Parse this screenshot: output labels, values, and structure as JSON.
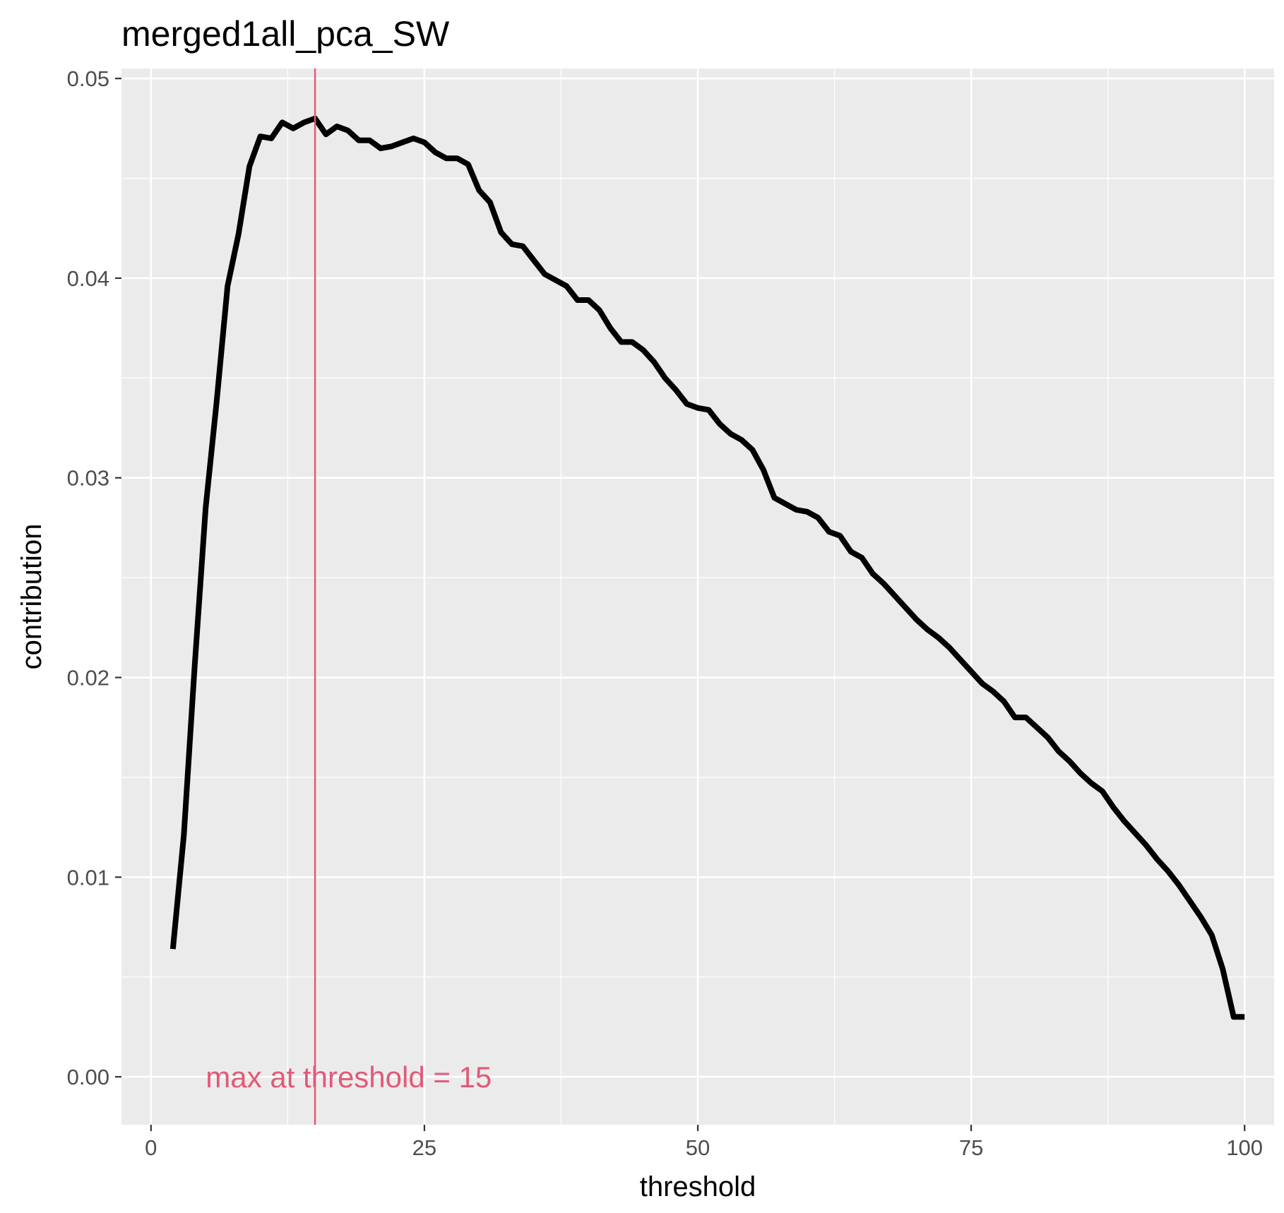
{
  "chart_data": {
    "type": "line",
    "title": "merged1all_pca_SW",
    "xlabel": "threshold",
    "ylabel": "contribution",
    "xlim": [
      -2.7,
      102.7
    ],
    "ylim": [
      -0.0024,
      0.0505
    ],
    "x_ticks": [
      0,
      25,
      50,
      75,
      100
    ],
    "x_tick_labels": [
      "0",
      "25",
      "50",
      "75",
      "100"
    ],
    "y_ticks": [
      0,
      0.01,
      0.02,
      0.03,
      0.04,
      0.05
    ],
    "y_tick_labels": [
      "0.00",
      "0.01",
      "0.02",
      "0.03",
      "0.04",
      "0.05"
    ],
    "grid": true,
    "legend": "none",
    "series": [
      {
        "color": "#000000",
        "x": [
          2,
          3,
          4,
          5,
          6,
          7,
          8,
          9,
          10,
          11,
          12,
          13,
          14,
          15,
          16,
          17,
          18,
          19,
          20,
          21,
          22,
          23,
          24,
          25,
          26,
          27,
          28,
          29,
          30,
          31,
          32,
          33,
          34,
          35,
          36,
          37,
          38,
          39,
          40,
          41,
          42,
          43,
          44,
          45,
          46,
          47,
          48,
          49,
          50,
          51,
          52,
          53,
          54,
          55,
          56,
          57,
          58,
          59,
          60,
          61,
          62,
          63,
          64,
          65,
          66,
          67,
          68,
          69,
          70,
          71,
          72,
          73,
          74,
          75,
          76,
          77,
          78,
          79,
          80,
          81,
          82,
          83,
          84,
          85,
          86,
          87,
          88,
          89,
          90,
          91,
          92,
          93,
          94,
          95,
          96,
          97,
          98,
          99,
          100
        ],
        "y": [
          0.0064,
          0.0121,
          0.0206,
          0.0285,
          0.0338,
          0.0396,
          0.0422,
          0.0456,
          0.0471,
          0.047,
          0.0478,
          0.0475,
          0.0478,
          0.048,
          0.0472,
          0.0476,
          0.0474,
          0.0469,
          0.0469,
          0.0465,
          0.0466,
          0.0468,
          0.047,
          0.0468,
          0.0463,
          0.046,
          0.046,
          0.0457,
          0.0444,
          0.0438,
          0.0423,
          0.0417,
          0.0416,
          0.0409,
          0.0402,
          0.0399,
          0.0396,
          0.0389,
          0.0389,
          0.0384,
          0.0375,
          0.0368,
          0.0368,
          0.0364,
          0.0358,
          0.035,
          0.0344,
          0.0337,
          0.0335,
          0.0334,
          0.0327,
          0.0322,
          0.0319,
          0.0314,
          0.0304,
          0.029,
          0.0287,
          0.0284,
          0.0283,
          0.028,
          0.0273,
          0.0271,
          0.0263,
          0.026,
          0.0252,
          0.0247,
          0.0241,
          0.0235,
          0.0229,
          0.0224,
          0.022,
          0.0215,
          0.0209,
          0.0203,
          0.0197,
          0.0193,
          0.0188,
          0.018,
          0.018,
          0.0175,
          0.017,
          0.0163,
          0.0158,
          0.0152,
          0.0147,
          0.0143,
          0.0135,
          0.0128,
          0.0122,
          0.0116,
          0.0109,
          0.0103,
          0.0096,
          0.0088,
          0.008,
          0.0071,
          0.0054,
          0.003,
          0.003
        ]
      }
    ],
    "vline": {
      "x": 15,
      "color": "#E15A78"
    },
    "annotation": {
      "text": "max at threshold =  15",
      "x": 5,
      "y": 0,
      "color": "#E15A78"
    }
  }
}
